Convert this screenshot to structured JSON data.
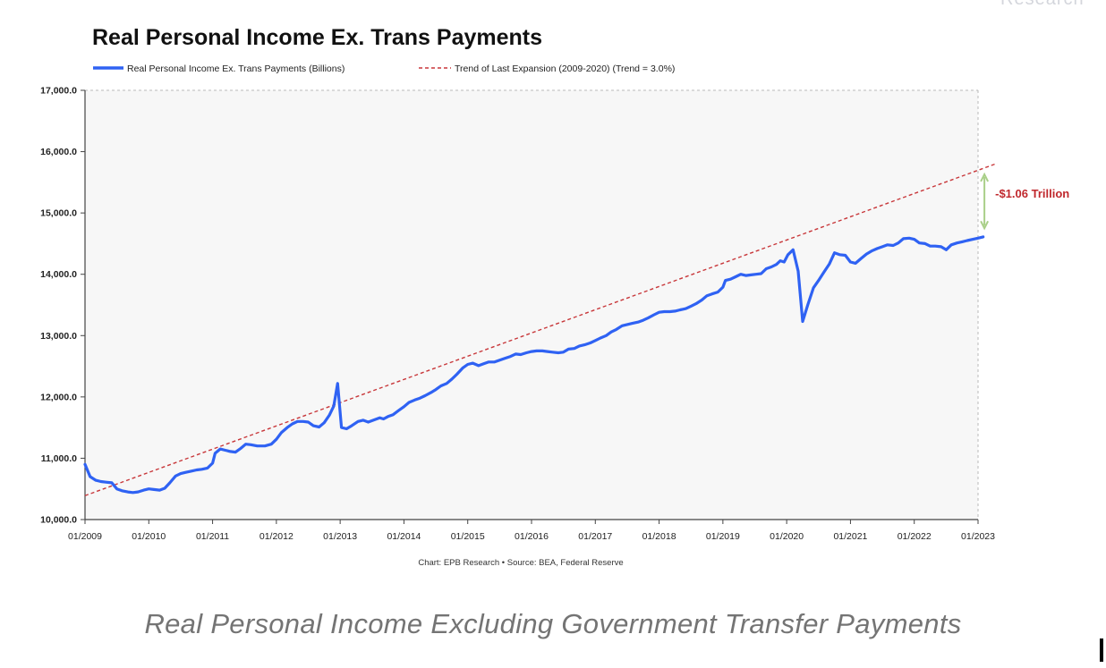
{
  "brand_text": "Research",
  "caption": "Real Personal Income Excluding Government Transfer Payments",
  "chart_data": {
    "type": "line",
    "title": "Real Personal Income Ex. Trans Payments",
    "footer": "Chart: EPB Research • Source: BEA, Federal Reserve",
    "xlabel": "",
    "ylabel": "",
    "x_ticks": [
      "01/2009",
      "01/2010",
      "01/2011",
      "01/2012",
      "01/2013",
      "01/2014",
      "01/2015",
      "01/2016",
      "01/2017",
      "01/2018",
      "01/2019",
      "01/2020",
      "01/2021",
      "01/2022",
      "01/2023"
    ],
    "y_ticks": [
      "10,000.0",
      "11,000.0",
      "12,000.0",
      "13,000.0",
      "14,000.0",
      "15,000.0",
      "16,000.0",
      "17,000.0"
    ],
    "xlim": [
      2009.0,
      2023.0
    ],
    "ylim": [
      10000,
      17000
    ],
    "grid": false,
    "legend_position": "top",
    "series": [
      {
        "name": "Real Personal Income Ex. Trans Payments (Billions)",
        "color": "#2f62f3",
        "style": "solid",
        "points": [
          [
            2009.0,
            10900
          ],
          [
            2009.08,
            10700
          ],
          [
            2009.17,
            10640
          ],
          [
            2009.25,
            10620
          ],
          [
            2009.33,
            10610
          ],
          [
            2009.42,
            10600
          ],
          [
            2009.5,
            10500
          ],
          [
            2009.58,
            10470
          ],
          [
            2009.67,
            10450
          ],
          [
            2009.75,
            10440
          ],
          [
            2009.83,
            10450
          ],
          [
            2009.92,
            10480
          ],
          [
            2010.0,
            10500
          ],
          [
            2010.08,
            10490
          ],
          [
            2010.17,
            10480
          ],
          [
            2010.25,
            10510
          ],
          [
            2010.33,
            10600
          ],
          [
            2010.42,
            10710
          ],
          [
            2010.5,
            10750
          ],
          [
            2010.58,
            10770
          ],
          [
            2010.67,
            10790
          ],
          [
            2010.75,
            10810
          ],
          [
            2010.83,
            10820
          ],
          [
            2010.92,
            10840
          ],
          [
            2011.0,
            10920
          ],
          [
            2011.04,
            11080
          ],
          [
            2011.12,
            11150
          ],
          [
            2011.2,
            11130
          ],
          [
            2011.28,
            11110
          ],
          [
            2011.36,
            11100
          ],
          [
            2011.44,
            11160
          ],
          [
            2011.52,
            11230
          ],
          [
            2011.6,
            11220
          ],
          [
            2011.7,
            11200
          ],
          [
            2011.82,
            11200
          ],
          [
            2011.92,
            11230
          ],
          [
            2012.0,
            11310
          ],
          [
            2012.08,
            11420
          ],
          [
            2012.17,
            11500
          ],
          [
            2012.25,
            11560
          ],
          [
            2012.33,
            11600
          ],
          [
            2012.42,
            11600
          ],
          [
            2012.5,
            11590
          ],
          [
            2012.58,
            11530
          ],
          [
            2012.67,
            11510
          ],
          [
            2012.75,
            11580
          ],
          [
            2012.83,
            11700
          ],
          [
            2012.9,
            11850
          ],
          [
            2012.96,
            12220
          ],
          [
            2013.02,
            11500
          ],
          [
            2013.1,
            11480
          ],
          [
            2013.18,
            11530
          ],
          [
            2013.28,
            11600
          ],
          [
            2013.36,
            11620
          ],
          [
            2013.44,
            11590
          ],
          [
            2013.52,
            11620
          ],
          [
            2013.62,
            11660
          ],
          [
            2013.68,
            11640
          ],
          [
            2013.75,
            11680
          ],
          [
            2013.83,
            11710
          ],
          [
            2013.92,
            11780
          ],
          [
            2014.0,
            11840
          ],
          [
            2014.08,
            11910
          ],
          [
            2014.17,
            11950
          ],
          [
            2014.25,
            11980
          ],
          [
            2014.33,
            12020
          ],
          [
            2014.42,
            12070
          ],
          [
            2014.5,
            12120
          ],
          [
            2014.58,
            12180
          ],
          [
            2014.67,
            12220
          ],
          [
            2014.75,
            12290
          ],
          [
            2014.83,
            12370
          ],
          [
            2014.92,
            12470
          ],
          [
            2015.0,
            12530
          ],
          [
            2015.08,
            12550
          ],
          [
            2015.17,
            12510
          ],
          [
            2015.25,
            12540
          ],
          [
            2015.33,
            12570
          ],
          [
            2015.42,
            12570
          ],
          [
            2015.5,
            12600
          ],
          [
            2015.58,
            12630
          ],
          [
            2015.67,
            12660
          ],
          [
            2015.75,
            12700
          ],
          [
            2015.83,
            12690
          ],
          [
            2015.92,
            12720
          ],
          [
            2016.0,
            12740
          ],
          [
            2016.08,
            12750
          ],
          [
            2016.17,
            12750
          ],
          [
            2016.25,
            12740
          ],
          [
            2016.33,
            12730
          ],
          [
            2016.42,
            12720
          ],
          [
            2016.5,
            12730
          ],
          [
            2016.58,
            12780
          ],
          [
            2016.67,
            12790
          ],
          [
            2016.75,
            12830
          ],
          [
            2016.83,
            12850
          ],
          [
            2016.92,
            12880
          ],
          [
            2017.0,
            12920
          ],
          [
            2017.08,
            12960
          ],
          [
            2017.17,
            13000
          ],
          [
            2017.25,
            13060
          ],
          [
            2017.33,
            13100
          ],
          [
            2017.42,
            13160
          ],
          [
            2017.5,
            13180
          ],
          [
            2017.58,
            13200
          ],
          [
            2017.67,
            13220
          ],
          [
            2017.75,
            13250
          ],
          [
            2017.83,
            13290
          ],
          [
            2017.92,
            13340
          ],
          [
            2018.0,
            13380
          ],
          [
            2018.08,
            13390
          ],
          [
            2018.17,
            13390
          ],
          [
            2018.25,
            13400
          ],
          [
            2018.33,
            13420
          ],
          [
            2018.42,
            13440
          ],
          [
            2018.5,
            13480
          ],
          [
            2018.58,
            13520
          ],
          [
            2018.67,
            13580
          ],
          [
            2018.75,
            13650
          ],
          [
            2018.83,
            13680
          ],
          [
            2018.92,
            13710
          ],
          [
            2019.0,
            13790
          ],
          [
            2019.04,
            13900
          ],
          [
            2019.12,
            13920
          ],
          [
            2019.2,
            13960
          ],
          [
            2019.28,
            14000
          ],
          [
            2019.36,
            13980
          ],
          [
            2019.44,
            13990
          ],
          [
            2019.52,
            14000
          ],
          [
            2019.6,
            14010
          ],
          [
            2019.68,
            14090
          ],
          [
            2019.76,
            14120
          ],
          [
            2019.84,
            14160
          ],
          [
            2019.9,
            14220
          ],
          [
            2019.96,
            14200
          ],
          [
            2020.02,
            14320
          ],
          [
            2020.1,
            14400
          ],
          [
            2020.18,
            14050
          ],
          [
            2020.25,
            13230
          ],
          [
            2020.33,
            13500
          ],
          [
            2020.42,
            13780
          ],
          [
            2020.5,
            13900
          ],
          [
            2020.58,
            14030
          ],
          [
            2020.67,
            14170
          ],
          [
            2020.75,
            14350
          ],
          [
            2020.83,
            14320
          ],
          [
            2020.92,
            14310
          ],
          [
            2021.0,
            14200
          ],
          [
            2021.08,
            14180
          ],
          [
            2021.17,
            14260
          ],
          [
            2021.25,
            14330
          ],
          [
            2021.33,
            14380
          ],
          [
            2021.42,
            14420
          ],
          [
            2021.5,
            14450
          ],
          [
            2021.58,
            14480
          ],
          [
            2021.67,
            14470
          ],
          [
            2021.75,
            14510
          ],
          [
            2021.83,
            14580
          ],
          [
            2021.92,
            14590
          ],
          [
            2022.0,
            14570
          ],
          [
            2022.08,
            14510
          ],
          [
            2022.17,
            14500
          ],
          [
            2022.25,
            14460
          ],
          [
            2022.33,
            14460
          ],
          [
            2022.42,
            14450
          ],
          [
            2022.5,
            14400
          ],
          [
            2022.58,
            14480
          ],
          [
            2022.67,
            14510
          ],
          [
            2022.75,
            14530
          ],
          [
            2022.83,
            14550
          ],
          [
            2022.92,
            14570
          ],
          [
            2023.0,
            14590
          ],
          [
            2023.08,
            14610
          ]
        ]
      },
      {
        "name": "Trend of Last Expansion (2009-2020) (Trend = 3.0%)",
        "color": "#c8373a",
        "style": "dashed",
        "points": [
          [
            2009.0,
            10390
          ],
          [
            2023.3,
            15810
          ]
        ]
      }
    ],
    "annotations": [
      {
        "label": "-$1.06 Trillion",
        "color": "#c0282d",
        "arrow_color": "#a9cf88",
        "x": 2023.1,
        "y_from": 14750,
        "y_to": 15630
      }
    ]
  }
}
